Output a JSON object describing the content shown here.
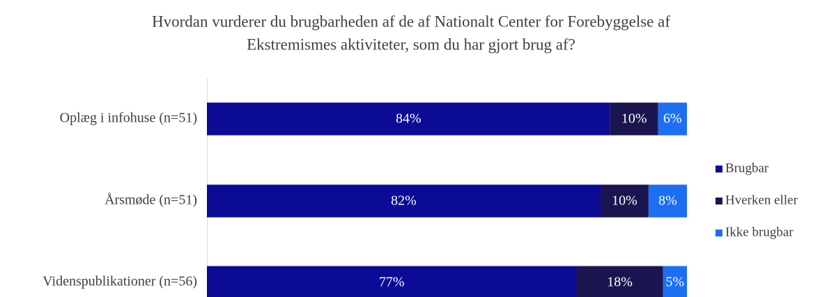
{
  "chart_data": {
    "type": "stacked-barh",
    "title": [
      "Hvordan vurderer du brugbarheden af de af Nationalt Center for Forebyggelse af",
      "Ekstremismes aktiviteter, som du har gjort brug af?"
    ],
    "categories": [
      "Oplæg i infohuse (n=51)",
      "Årsmøde (n=51)",
      "Videnspublikationer (n=56)"
    ],
    "series": [
      {
        "name": "Brugbar",
        "color": "#0b0b96",
        "values": [
          84,
          82,
          77
        ],
        "value_labels": [
          "84%",
          "82%",
          "77%"
        ]
      },
      {
        "name": "Hverken eller",
        "color": "#1b154f",
        "values": [
          10,
          10,
          18
        ],
        "value_labels": [
          "10%",
          "10%",
          "18%"
        ]
      },
      {
        "name": "Ikke brugbar",
        "color": "#1c6ff3",
        "values": [
          6,
          8,
          5
        ],
        "value_labels": [
          "6%",
          "8%",
          "5%"
        ]
      }
    ],
    "xlim": [
      0,
      100
    ],
    "legend": "right"
  }
}
